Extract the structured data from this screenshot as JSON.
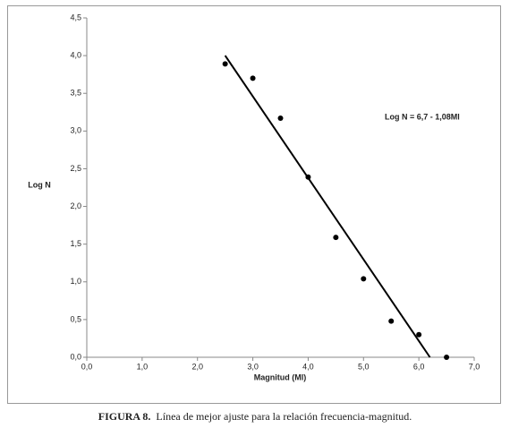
{
  "chart_data": {
    "type": "scatter",
    "y_label": "Log N",
    "x_label": "Magnitud (Ml)",
    "annotation": "Log N = 6,7 - 1,08Ml",
    "caption_bold": "FIGURA 8.",
    "caption": "Línea de mejor ajuste para la relación frecuencia-magnitud.",
    "x": [
      2.5,
      3.0,
      3.5,
      4.0,
      4.5,
      5.0,
      5.5,
      6.0,
      6.5
    ],
    "values": [
      3.89,
      3.7,
      3.17,
      2.39,
      1.59,
      1.04,
      0.48,
      0.3,
      0.0
    ],
    "color": "#000000",
    "fit_line": {
      "x": [
        2.5,
        6.2
      ],
      "values": [
        4.0,
        0.0
      ]
    },
    "xlim": [
      0,
      7
    ],
    "ylim": [
      0,
      4.5
    ],
    "xticks": [
      {
        "value": 0,
        "label": "0,0"
      },
      {
        "value": 1,
        "label": "1,0"
      },
      {
        "value": 2,
        "label": "2,0"
      },
      {
        "value": 3,
        "label": "3,0"
      },
      {
        "value": 4,
        "label": "4,0"
      },
      {
        "value": 5,
        "label": "5,0"
      },
      {
        "value": 6,
        "label": "6,0"
      },
      {
        "value": 7,
        "label": "7,0"
      }
    ],
    "yticks": [
      {
        "value": 0,
        "label": "0,0"
      },
      {
        "value": 0.5,
        "label": "0,5"
      },
      {
        "value": 1,
        "label": "1,0"
      },
      {
        "value": 1.5,
        "label": "1,5"
      },
      {
        "value": 2,
        "label": "2,0"
      },
      {
        "value": 2.5,
        "label": "2,5"
      },
      {
        "value": 3,
        "label": "3,0"
      },
      {
        "value": 3.5,
        "label": "3,5"
      },
      {
        "value": 4,
        "label": "4,0"
      },
      {
        "value": 4.5,
        "label": "4,5"
      }
    ],
    "grid": false
  }
}
